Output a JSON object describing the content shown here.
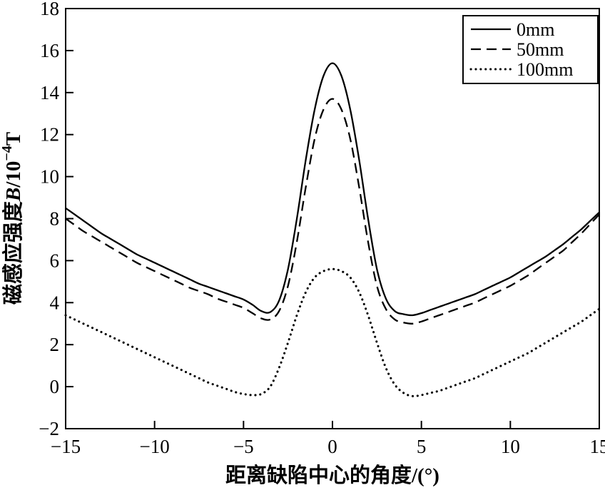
{
  "figure": {
    "background": "#ffffff",
    "line_color": "#000000"
  },
  "chart_data": {
    "type": "line",
    "title": "",
    "xlabel": "距离缺陷中心的角度/(°)",
    "ylabel": {
      "prefix": "磁感应强度",
      "variable": "B",
      "unit_pre": "/10",
      "exponent": "−4",
      "unit_post": "T"
    },
    "xlim": [
      -15,
      15
    ],
    "ylim": [
      -2,
      18
    ],
    "grid": false,
    "legend_position": "top-right",
    "xticks": {
      "values": [
        -15,
        -10,
        -5,
        0,
        5,
        10,
        15
      ],
      "labels": [
        "−15",
        "−10",
        "−5",
        "0",
        "5",
        "10",
        "15"
      ]
    },
    "yticks": {
      "values": [
        -2,
        0,
        2,
        4,
        6,
        8,
        10,
        12,
        14,
        16,
        18
      ],
      "labels": [
        "−2",
        "0",
        "2",
        "4",
        "6",
        "8",
        "10",
        "12",
        "14",
        "16",
        "18"
      ]
    },
    "x": [
      -15,
      -14.5,
      -14,
      -13.5,
      -13,
      -12.5,
      -12,
      -11.5,
      -11,
      -10.5,
      -10,
      -9.5,
      -9,
      -8.5,
      -8,
      -7.5,
      -7,
      -6.5,
      -6,
      -5.5,
      -5,
      -4.5,
      -4,
      -3.5,
      -3,
      -2.5,
      -2,
      -1.5,
      -1,
      -0.5,
      0,
      0.5,
      1,
      1.5,
      2,
      2.5,
      3,
      3.5,
      4,
      4.5,
      5,
      5.5,
      6,
      6.5,
      7,
      7.5,
      8,
      8.5,
      9,
      9.5,
      10,
      10.5,
      11,
      11.5,
      12,
      12.5,
      13,
      13.5,
      14,
      14.5,
      15
    ],
    "series": [
      {
        "name": "0mm",
        "style": "solid",
        "values": [
          8.5,
          8.2,
          7.9,
          7.6,
          7.3,
          7.05,
          6.8,
          6.55,
          6.3,
          6.1,
          5.9,
          5.7,
          5.5,
          5.3,
          5.1,
          4.9,
          4.75,
          4.6,
          4.45,
          4.3,
          4.15,
          3.9,
          3.6,
          3.55,
          4.1,
          5.6,
          8.0,
          10.8,
          13.2,
          14.8,
          15.4,
          14.8,
          13.2,
          10.8,
          8.0,
          5.6,
          4.2,
          3.6,
          3.45,
          3.4,
          3.5,
          3.65,
          3.8,
          3.95,
          4.1,
          4.25,
          4.4,
          4.6,
          4.8,
          5.0,
          5.2,
          5.45,
          5.7,
          5.95,
          6.2,
          6.5,
          6.8,
          7.15,
          7.5,
          7.9,
          8.3
        ]
      },
      {
        "name": "50mm",
        "style": "dashed",
        "values": [
          8.0,
          7.7,
          7.4,
          7.15,
          6.9,
          6.65,
          6.4,
          6.15,
          5.9,
          5.7,
          5.5,
          5.3,
          5.1,
          4.9,
          4.7,
          4.55,
          4.4,
          4.2,
          4.05,
          3.9,
          3.75,
          3.5,
          3.25,
          3.2,
          3.6,
          4.8,
          6.9,
          9.5,
          11.8,
          13.2,
          13.7,
          13.2,
          11.8,
          9.5,
          6.9,
          4.8,
          3.7,
          3.2,
          3.05,
          3.0,
          3.1,
          3.25,
          3.4,
          3.55,
          3.7,
          3.85,
          4.0,
          4.2,
          4.4,
          4.6,
          4.8,
          5.05,
          5.3,
          5.6,
          5.9,
          6.2,
          6.5,
          6.9,
          7.3,
          7.75,
          8.2
        ]
      },
      {
        "name": "100mm",
        "style": "dotted",
        "values": [
          3.4,
          3.2,
          3.0,
          2.8,
          2.6,
          2.4,
          2.2,
          2.0,
          1.8,
          1.6,
          1.4,
          1.2,
          1.0,
          0.8,
          0.6,
          0.4,
          0.2,
          0.05,
          -0.1,
          -0.25,
          -0.35,
          -0.4,
          -0.35,
          0.0,
          0.9,
          2.1,
          3.4,
          4.5,
          5.2,
          5.5,
          5.6,
          5.5,
          5.2,
          4.5,
          3.4,
          2.1,
          0.9,
          0.1,
          -0.3,
          -0.45,
          -0.4,
          -0.3,
          -0.2,
          -0.05,
          0.1,
          0.25,
          0.4,
          0.6,
          0.8,
          1.0,
          1.2,
          1.4,
          1.6,
          1.85,
          2.1,
          2.35,
          2.6,
          2.85,
          3.1,
          3.4,
          3.7
        ]
      }
    ]
  }
}
